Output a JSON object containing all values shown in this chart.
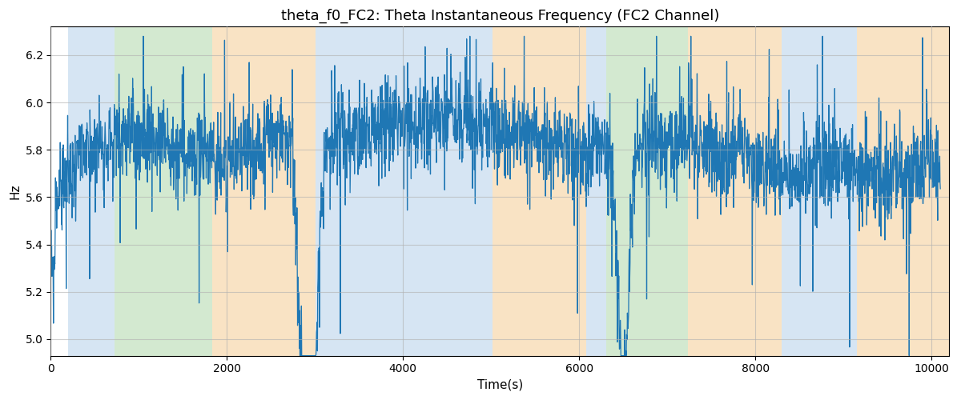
{
  "title": "theta_f0_FC2: Theta Instantaneous Frequency (FC2 Channel)",
  "xlabel": "Time(s)",
  "ylabel": "Hz",
  "xlim": [
    0,
    10200
  ],
  "ylim": [
    4.93,
    6.32
  ],
  "line_color": "#1f77b4",
  "line_width": 0.9,
  "background_regions": [
    {
      "xmin": 200,
      "xmax": 720,
      "color": "#aecde8",
      "alpha": 0.5
    },
    {
      "xmin": 720,
      "xmax": 1830,
      "color": "#a8d5a2",
      "alpha": 0.5
    },
    {
      "xmin": 1830,
      "xmax": 3010,
      "color": "#f5c98a",
      "alpha": 0.5
    },
    {
      "xmin": 3010,
      "xmax": 5020,
      "color": "#aecde8",
      "alpha": 0.5
    },
    {
      "xmin": 5020,
      "xmax": 6080,
      "color": "#f5c98a",
      "alpha": 0.5
    },
    {
      "xmin": 6080,
      "xmax": 6310,
      "color": "#aecde8",
      "alpha": 0.5
    },
    {
      "xmin": 6310,
      "xmax": 7230,
      "color": "#a8d5a2",
      "alpha": 0.5
    },
    {
      "xmin": 7230,
      "xmax": 8300,
      "color": "#f5c98a",
      "alpha": 0.5
    },
    {
      "xmin": 8300,
      "xmax": 9150,
      "color": "#aecde8",
      "alpha": 0.5
    },
    {
      "xmin": 9150,
      "xmax": 10200,
      "color": "#f5c98a",
      "alpha": 0.5
    }
  ],
  "yticks": [
    5.0,
    5.2,
    5.4,
    5.6,
    5.8,
    6.0,
    6.2
  ],
  "xticks": [
    0,
    2000,
    4000,
    6000,
    8000,
    10000
  ],
  "grid_color": "#b0b0b0",
  "grid_alpha": 0.6,
  "grid_linewidth": 0.8,
  "figsize": [
    12.0,
    5.0
  ],
  "dpi": 100,
  "title_fontsize": 13,
  "label_fontsize": 11
}
